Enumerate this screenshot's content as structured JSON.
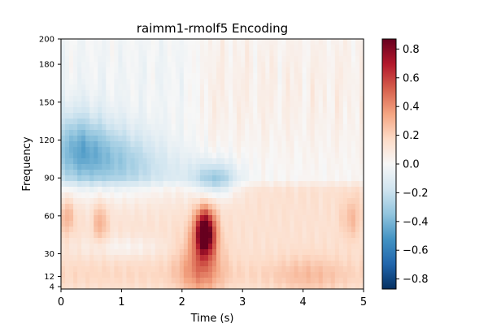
{
  "chart_data": {
    "type": "heatmap",
    "title": "raimm1-rmolf5 Encoding",
    "xlabel": "Time (s)",
    "ylabel": "Frequency",
    "xlim": [
      0,
      5
    ],
    "ylim": [
      2,
      200
    ],
    "x_ticks": [
      0,
      1,
      2,
      3,
      4,
      5
    ],
    "x_tick_labels": [
      "0",
      "1",
      "2",
      "3",
      "4",
      "5"
    ],
    "y_ticks": [
      4,
      12,
      30,
      60,
      90,
      120,
      150,
      180,
      200
    ],
    "y_tick_labels": [
      "4",
      "12",
      "30",
      "60",
      "90",
      "120",
      "150",
      "180",
      "200"
    ],
    "colorbar": {
      "colormap": "RdBu_r",
      "range": [
        -0.87,
        0.87
      ],
      "ticks": [
        -0.8,
        -0.6,
        -0.4,
        -0.2,
        0.0,
        0.2,
        0.4,
        0.6,
        0.8
      ],
      "tick_labels": [
        "−0.8",
        "−0.6",
        "−0.4",
        "−0.2",
        "0.0",
        "0.2",
        "0.4",
        "0.6",
        "0.8"
      ],
      "colors": [
        "#053061",
        "#2166ac",
        "#4393c3",
        "#92c5de",
        "#d1e5f0",
        "#f7f7f7",
        "#fddbc7",
        "#f4a582",
        "#d6604d",
        "#b2182b",
        "#67001f"
      ]
    },
    "features": [
      {
        "name": "high-gamma suppression, early",
        "time": [
          0.0,
          0.9
        ],
        "freq": [
          85,
          140
        ],
        "value": -0.32
      },
      {
        "name": "broad low-frequency positive band",
        "time": [
          0.0,
          5.0
        ],
        "freq": [
          2,
          75
        ],
        "value": 0.12
      },
      {
        "name": "peak positive response",
        "time": [
          2.2,
          2.6
        ],
        "freq": [
          25,
          65
        ],
        "value": 0.87
      },
      {
        "name": "mid-gamma suppression after peak",
        "time": [
          2.2,
          3.0
        ],
        "freq": [
          75,
          100
        ],
        "value": -0.3
      },
      {
        "name": "high-frequency positive streaks, late",
        "time": [
          2.4,
          5.0
        ],
        "freq": [
          100,
          200
        ],
        "value": 0.15
      }
    ]
  }
}
